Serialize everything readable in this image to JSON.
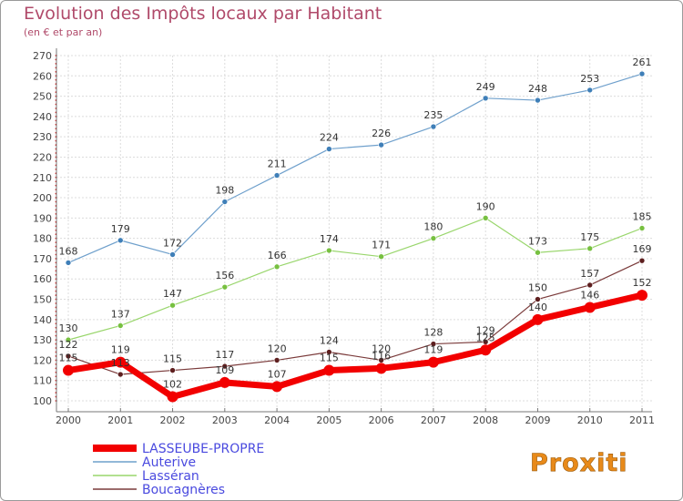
{
  "title": "Evolution des Impôts locaux par Habitant",
  "subtitle": "(en € et par an)",
  "logo_text": "Proxiti",
  "chart_data": {
    "type": "line",
    "title": "Evolution des Impôts locaux par Habitant",
    "subtitle": "(en € et par an)",
    "x": [
      "2000",
      "2001",
      "2002",
      "2003",
      "2004",
      "2005",
      "2006",
      "2007",
      "2008",
      "2009",
      "2010",
      "2011"
    ],
    "ylim": [
      100,
      270
    ],
    "yticks": [
      100,
      110,
      120,
      130,
      140,
      150,
      160,
      170,
      180,
      190,
      200,
      210,
      220,
      230,
      240,
      250,
      260,
      270
    ],
    "grid": true,
    "legend_position": "bottom-left",
    "series": [
      {
        "name": "Auterive",
        "color": "#6fa0cc",
        "marker": "#3f7fb8",
        "width": 1.2,
        "markerR": 3,
        "values": [
          168,
          179,
          172,
          198,
          211,
          224,
          226,
          235,
          249,
          248,
          253,
          261
        ]
      },
      {
        "name": "Lasséran",
        "color": "#99d66c",
        "marker": "#77c040",
        "width": 1.2,
        "markerR": 3,
        "values": [
          130,
          137,
          147,
          156,
          166,
          174,
          171,
          180,
          190,
          173,
          175,
          185
        ]
      },
      {
        "name": "Boucagnères",
        "color": "#7a3a3a",
        "marker": "#5e1f1f",
        "width": 1.2,
        "markerR": 3,
        "values": [
          122,
          113,
          115,
          117,
          120,
          124,
          120,
          128,
          129,
          150,
          157,
          169
        ]
      },
      {
        "name": "LASSEUBE-PROPRE",
        "color": "#f20000",
        "marker": "#f20000",
        "width": 7,
        "markerR": 6,
        "values": [
          115,
          119,
          102,
          109,
          107,
          115,
          116,
          119,
          125,
          140,
          146,
          152
        ]
      }
    ]
  }
}
